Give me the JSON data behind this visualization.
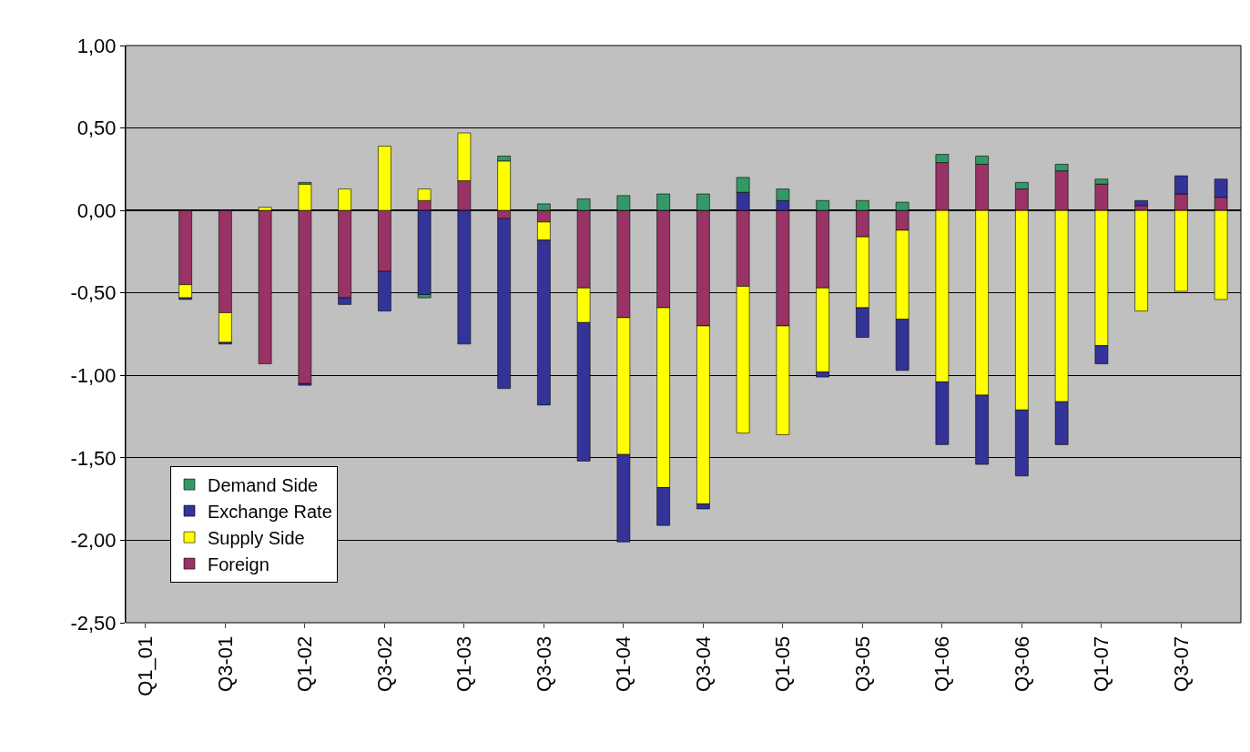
{
  "chart_data": {
    "type": "bar",
    "stacked": true,
    "categories": [
      "Q1_01",
      null,
      "Q3-01",
      null,
      "Q1-02",
      null,
      "Q3-02",
      null,
      "Q1-03",
      null,
      "Q3-03",
      null,
      "Q1-04",
      null,
      "Q3-04",
      null,
      "Q1-05",
      null,
      "Q3-05",
      null,
      "Q1-06",
      null,
      "Q3-06",
      null,
      "Q1-07",
      null,
      "Q3-07",
      null
    ],
    "series": [
      {
        "name": "Foreign",
        "color": "#993366",
        "values": [
          null,
          -0.45,
          -0.62,
          -0.93,
          -1.05,
          -0.53,
          -0.37,
          0.06,
          0.18,
          -0.05,
          -0.07,
          -0.47,
          -0.65,
          -0.59,
          -0.7,
          -0.46,
          -0.7,
          -0.47,
          -0.16,
          -0.12,
          0.29,
          0.28,
          0.13,
          0.24,
          0.16,
          0.03,
          0.1,
          0.08
        ]
      },
      {
        "name": "Supply Side",
        "color": "#ffff00",
        "values": [
          null,
          -0.08,
          -0.18,
          0.02,
          0.16,
          0.13,
          0.39,
          0.07,
          0.29,
          0.3,
          -0.11,
          -0.21,
          -0.83,
          -1.09,
          -1.08,
          -0.89,
          -0.66,
          -0.51,
          -0.43,
          -0.54,
          -1.04,
          -1.12,
          -1.21,
          -1.16,
          -0.82,
          -0.61,
          -0.49,
          -0.54
        ]
      },
      {
        "name": "Exchange Rate",
        "color": "#333399",
        "values": [
          null,
          -0.01,
          -0.01,
          null,
          -0.01,
          -0.04,
          -0.24,
          -0.51,
          -0.81,
          -1.03,
          -1.0,
          -0.84,
          -0.53,
          -0.23,
          -0.03,
          0.11,
          0.06,
          -0.03,
          -0.18,
          -0.31,
          -0.38,
          -0.42,
          -0.4,
          -0.26,
          -0.11,
          0.03,
          0.11,
          0.11
        ]
      },
      {
        "name": "Demand Side",
        "color": "#339966",
        "values": [
          null,
          null,
          null,
          null,
          0.01,
          null,
          null,
          -0.02,
          null,
          0.03,
          0.04,
          0.07,
          0.09,
          0.1,
          0.1,
          0.09,
          0.07,
          0.06,
          0.06,
          0.05,
          0.05,
          0.05,
          0.04,
          0.04,
          0.03,
          null,
          null,
          null
        ]
      }
    ],
    "ylim": [
      -2.5,
      1.0
    ],
    "yticks": [
      {
        "value": 1.0,
        "label": "1,00"
      },
      {
        "value": 0.5,
        "label": "0,50"
      },
      {
        "value": 0.0,
        "label": "0,00"
      },
      {
        "value": -0.5,
        "label": "-0,50"
      },
      {
        "value": -1.0,
        "label": "-1,00"
      },
      {
        "value": -1.5,
        "label": "-1,50"
      },
      {
        "value": -2.0,
        "label": "-2,00"
      },
      {
        "value": -2.5,
        "label": "-2,50"
      }
    ],
    "grid": "y",
    "legend": "bottom left"
  }
}
